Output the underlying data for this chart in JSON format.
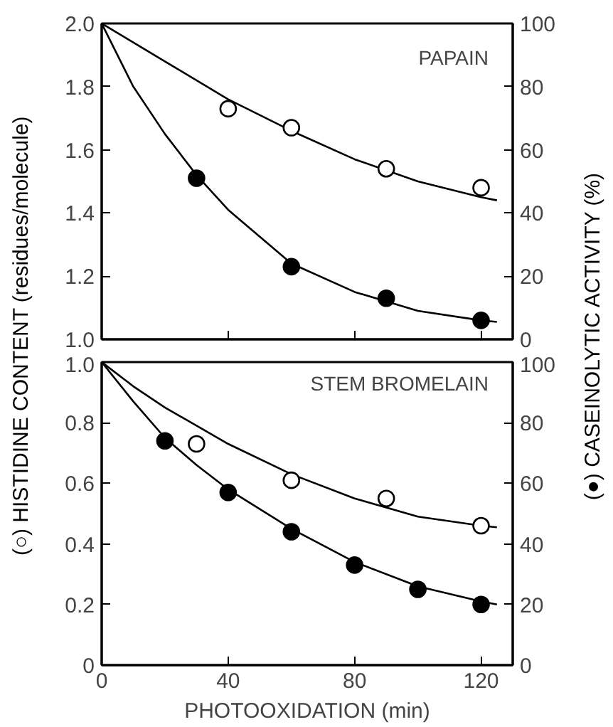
{
  "chart_data": [
    {
      "type": "scatter",
      "ylabel": "(○) HISTIDINE CONTENT (residues/molecule)",
      "y2label": "(●) CASEINOLYTIC ACTIVITY (%)",
      "annotations": [
        "PAPAIN"
      ],
      "xlim": [
        0,
        130
      ],
      "xticks": [
        0,
        40,
        80,
        120
      ],
      "tick_labels": "y",
      "ylim": [
        1.0,
        2.0
      ],
      "yticks": [
        {
          "value": 1.0,
          "label": "1.0"
        },
        {
          "value": 1.2,
          "label": "1.2"
        },
        {
          "value": 1.4,
          "label": "1.4"
        },
        {
          "value": 1.6,
          "label": "1.6"
        },
        {
          "value": 1.8,
          "label": "1.8"
        },
        {
          "value": 2.0,
          "label": "2.0"
        }
      ],
      "y2lim": [
        0,
        100
      ],
      "y2ticks": [
        0,
        20,
        40,
        60,
        80,
        100
      ],
      "grid": false,
      "series": [
        {
          "type": "line",
          "color": "#000000",
          "x": [
            0,
            20,
            40,
            60,
            80,
            100,
            120,
            125
          ],
          "values": [
            2.0,
            1.88,
            1.76,
            1.66,
            1.57,
            1.5,
            1.45,
            1.44
          ],
          "marker": "none"
        },
        {
          "type": "line",
          "color": "#000000",
          "axis": "y2",
          "x": [
            0,
            10,
            20,
            30,
            40,
            60,
            80,
            100,
            120,
            125
          ],
          "values": [
            100,
            80,
            65,
            52,
            41,
            24,
            15,
            9,
            6,
            5.5
          ],
          "marker": "none"
        },
        {
          "color": "#ffffff",
          "x": [
            40,
            60,
            90,
            120
          ],
          "values": [
            1.73,
            1.67,
            1.54,
            1.48
          ],
          "marker": "circle"
        },
        {
          "color": "#000000",
          "axis": "y2",
          "x": [
            30,
            60,
            90,
            120
          ],
          "values": [
            51,
            23,
            13,
            6
          ],
          "marker": "circle"
        }
      ]
    },
    {
      "type": "scatter",
      "xlabel": "PHOTOOXIDATION (min)",
      "annotations": [
        "STEM BROMELAIN"
      ],
      "xlim": [
        0,
        130
      ],
      "xticks": [
        0,
        40,
        80,
        120
      ],
      "ylim": [
        0,
        1.0
      ],
      "yticks": [
        0,
        {
          "value": 0.2,
          "label": "0.2"
        },
        {
          "value": 0.4,
          "label": "0.4"
        },
        {
          "value": 0.6,
          "label": "0.6"
        },
        {
          "value": 0.8,
          "label": "0.8"
        },
        {
          "value": 1.0,
          "label": "1.0"
        }
      ],
      "y2lim": [
        0,
        100
      ],
      "y2ticks": [
        0,
        20,
        40,
        60,
        80,
        100
      ],
      "grid": false,
      "series": [
        {
          "type": "line",
          "color": "#000000",
          "x": [
            0,
            10,
            20,
            30,
            40,
            60,
            80,
            100,
            120,
            125
          ],
          "values": [
            1.0,
            0.92,
            0.85,
            0.79,
            0.73,
            0.63,
            0.55,
            0.49,
            0.46,
            0.455
          ],
          "marker": "none"
        },
        {
          "type": "line",
          "color": "#000000",
          "axis": "y2",
          "x": [
            0,
            10,
            20,
            30,
            40,
            60,
            80,
            100,
            120,
            125
          ],
          "values": [
            100,
            87,
            75,
            66,
            58,
            45,
            34,
            26,
            21,
            20
          ],
          "marker": "none"
        },
        {
          "color": "#ffffff",
          "x": [
            30,
            60,
            90,
            120
          ],
          "values": [
            0.73,
            0.61,
            0.55,
            0.46
          ],
          "marker": "circle"
        },
        {
          "color": "#000000",
          "axis": "y2",
          "x": [
            20,
            40,
            60,
            80,
            100,
            120
          ],
          "values": [
            74,
            57,
            44,
            33,
            25,
            20
          ],
          "marker": "circle"
        }
      ]
    }
  ]
}
